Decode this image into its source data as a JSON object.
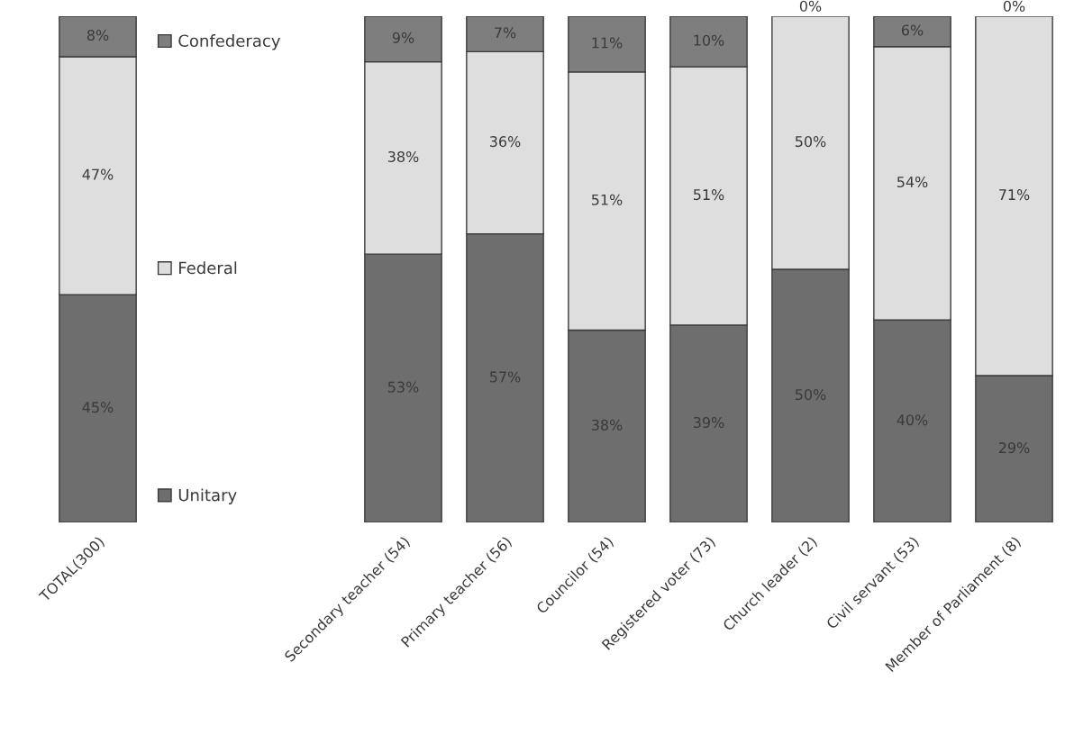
{
  "chart_data": [
    {
      "type": "bar",
      "stacked": true,
      "categories": [
        "TOTAL(300)"
      ],
      "ylim": [
        0,
        100
      ],
      "tick_labels": "x",
      "legend": "right",
      "series": [
        {
          "name": "Unitary",
          "color": "#6e6e6e",
          "values": [
            45
          ],
          "value_labels": [
            "45%"
          ]
        },
        {
          "name": "Federal",
          "color": "#dedede",
          "values": [
            47
          ],
          "value_labels": [
            "47%"
          ]
        },
        {
          "name": "Confederacy",
          "color": "#7e7e7e",
          "values": [
            8
          ],
          "value_labels": [
            "8%"
          ]
        }
      ]
    },
    {
      "type": "bar",
      "stacked": true,
      "categories": [
        "Secondary teacher (54)",
        "Primary teacher (56)",
        "Councilor (54)",
        "Registered voter (73)",
        "Church leader (2)",
        "Civil servant (53)",
        "Member of Parliament (8)"
      ],
      "ylim": [
        0,
        100
      ],
      "tick_labels": "x",
      "series": [
        {
          "color": "#6e6e6e",
          "values": [
            53,
            57,
            38,
            39,
            50,
            40,
            29
          ],
          "value_labels": [
            "53%",
            "57%",
            "38%",
            "39%",
            "50%",
            "40%",
            "29%"
          ]
        },
        {
          "color": "#dedede",
          "values": [
            38,
            36,
            51,
            51,
            50,
            54,
            71
          ],
          "value_labels": [
            "38%",
            "36%",
            "51%",
            "51%",
            "50%",
            "54%",
            "71%"
          ]
        },
        {
          "color": "#7e7e7e",
          "values": [
            9,
            7,
            11,
            10,
            0,
            6,
            0
          ],
          "value_labels": [
            "9%",
            "7%",
            "11%",
            "10%",
            "0%",
            "6%",
            "0%"
          ]
        }
      ]
    }
  ]
}
